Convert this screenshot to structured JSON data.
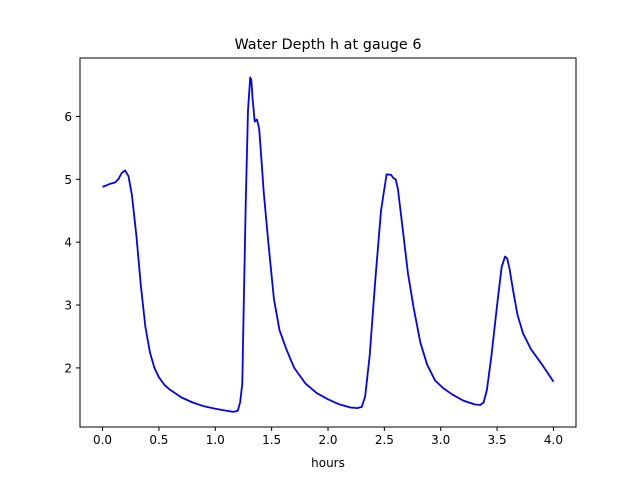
{
  "chart_data": {
    "type": "line",
    "title": "Water Depth h at gauge 6",
    "xlabel": "hours",
    "ylabel": "",
    "xlim": [
      -0.2,
      4.2
    ],
    "ylim": [
      1.06,
      6.93
    ],
    "xticks": [
      0.0,
      0.5,
      1.0,
      1.5,
      2.0,
      2.5,
      3.0,
      3.5,
      4.0
    ],
    "xtick_labels": [
      "0.0",
      "0.5",
      "1.0",
      "1.5",
      "2.0",
      "2.5",
      "3.0",
      "3.5",
      "4.0"
    ],
    "yticks": [
      2,
      3,
      4,
      5,
      6
    ],
    "ytick_labels": [
      "2",
      "3",
      "4",
      "5",
      "6"
    ],
    "grid": false,
    "series": [
      {
        "color": "#0000ff",
        "x": [
          0.0,
          0.03,
          0.07,
          0.11,
          0.14,
          0.17,
          0.2,
          0.23,
          0.26,
          0.3,
          0.34,
          0.38,
          0.42,
          0.46,
          0.5,
          0.55,
          0.6,
          0.7,
          0.8,
          0.9,
          1.0,
          1.1,
          1.16,
          1.2,
          1.22,
          1.24,
          1.25,
          1.27,
          1.29,
          1.31,
          1.32,
          1.33,
          1.35,
          1.37,
          1.39,
          1.41,
          1.43,
          1.47,
          1.52,
          1.57,
          1.63,
          1.7,
          1.8,
          1.9,
          2.0,
          2.1,
          2.2,
          2.26,
          2.3,
          2.33,
          2.37,
          2.42,
          2.47,
          2.52,
          2.56,
          2.58,
          2.6,
          2.62,
          2.66,
          2.71,
          2.76,
          2.82,
          2.88,
          2.95,
          3.02,
          3.1,
          3.2,
          3.3,
          3.35,
          3.38,
          3.41,
          3.45,
          3.5,
          3.54,
          3.57,
          3.59,
          3.61,
          3.64,
          3.68,
          3.73,
          3.8,
          3.9,
          4.0
        ],
        "values": [
          4.88,
          4.9,
          4.93,
          4.95,
          5.0,
          5.1,
          5.14,
          5.05,
          4.75,
          4.1,
          3.3,
          2.65,
          2.25,
          2.0,
          1.85,
          1.73,
          1.65,
          1.53,
          1.45,
          1.39,
          1.35,
          1.32,
          1.3,
          1.32,
          1.45,
          1.75,
          2.8,
          4.6,
          6.1,
          6.62,
          6.58,
          6.3,
          5.92,
          5.95,
          5.8,
          5.3,
          4.8,
          4.0,
          3.1,
          2.6,
          2.3,
          2.0,
          1.75,
          1.6,
          1.5,
          1.42,
          1.37,
          1.36,
          1.38,
          1.55,
          2.2,
          3.4,
          4.5,
          5.08,
          5.07,
          5.02,
          5.0,
          4.85,
          4.25,
          3.5,
          2.95,
          2.4,
          2.05,
          1.8,
          1.68,
          1.58,
          1.48,
          1.42,
          1.41,
          1.45,
          1.65,
          2.2,
          3.0,
          3.6,
          3.77,
          3.74,
          3.58,
          3.25,
          2.85,
          2.55,
          2.3,
          2.05,
          1.78
        ]
      }
    ]
  }
}
